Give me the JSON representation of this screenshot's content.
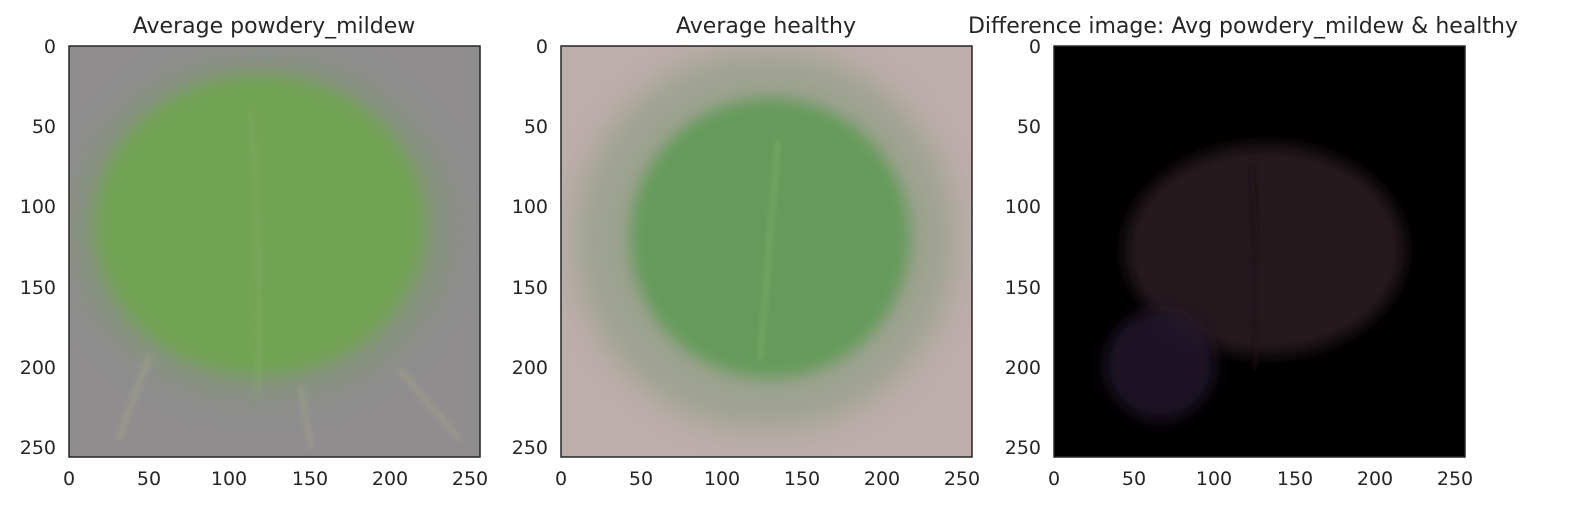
{
  "chart_data": [
    {
      "type": "image",
      "title": "Average powdery_mildew",
      "xticks": [
        0,
        50,
        100,
        150,
        200,
        250
      ],
      "yticks": [
        0,
        50,
        100,
        150,
        200,
        250
      ],
      "xlim": [
        0,
        256
      ],
      "ylim": [
        256,
        0
      ],
      "colors": {
        "background": "#8f8d8e",
        "leaf": "#6fa450",
        "leaf_edge": "#7e9a6e"
      }
    },
    {
      "type": "image",
      "title": "Average healthy",
      "xticks": [
        0,
        50,
        100,
        150,
        200,
        250
      ],
      "yticks": [
        0,
        50,
        100,
        150,
        200,
        250
      ],
      "xlim": [
        0,
        256
      ],
      "ylim": [
        256,
        0
      ],
      "colors": {
        "background": "#bcaeab",
        "leaf": "#5e9a55",
        "leaf_edge": "#8e9c82"
      }
    },
    {
      "type": "image",
      "title": "Difference image: Avg powdery_mildew & healthy",
      "xticks": [
        0,
        50,
        100,
        150,
        200,
        250
      ],
      "yticks": [
        0,
        50,
        100,
        150,
        200,
        250
      ],
      "xlim": [
        0,
        256
      ],
      "ylim": [
        256,
        0
      ],
      "colors": {
        "background": "#000000",
        "leaf": "#2b1a20",
        "leaf_edge": "#231429"
      }
    }
  ]
}
